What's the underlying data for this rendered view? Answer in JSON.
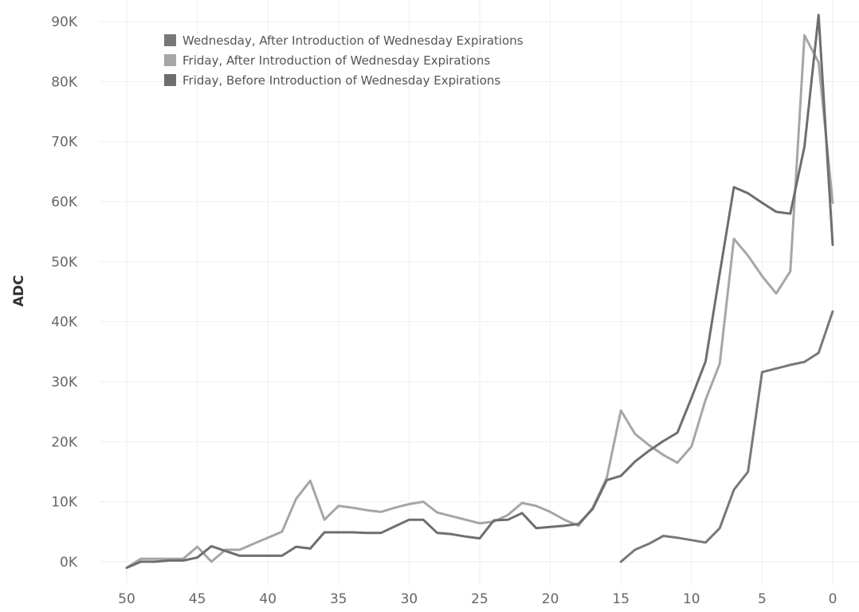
{
  "chart_data": {
    "type": "line",
    "title": "",
    "xlabel": "",
    "ylabel": "ADC",
    "xlim": [
      50,
      0
    ],
    "ylim": [
      -2000,
      92000
    ],
    "x_reversed": true,
    "x_ticks": [
      50,
      45,
      40,
      35,
      30,
      25,
      20,
      15,
      10,
      5,
      0
    ],
    "x_tick_labels": [
      "50",
      "45",
      "40",
      "35",
      "30",
      "25",
      "20",
      "15",
      "10",
      "5",
      "0"
    ],
    "y_ticks": [
      0,
      10000,
      20000,
      30000,
      40000,
      50000,
      60000,
      70000,
      80000,
      90000
    ],
    "y_tick_labels": [
      "0K",
      "10K",
      "20K",
      "30K",
      "40K",
      "50K",
      "60K",
      "70K",
      "80K",
      "90K"
    ],
    "grid": true,
    "legend_position": "top-left",
    "series": [
      {
        "name": "Wednesday, After Introduction of Wednesday Expirations",
        "color": "#787878",
        "x": [
          15,
          14,
          13,
          12,
          11,
          10,
          9,
          8,
          7,
          6,
          5,
          4,
          3,
          2,
          1,
          0
        ],
        "y": [
          0,
          2000,
          3000,
          4300,
          4000,
          3600,
          3200,
          5600,
          12000,
          15000,
          31600,
          32200,
          32800,
          33300,
          34800,
          41700
        ]
      },
      {
        "name": "Friday, After Introduction of Wednesday Expirations",
        "color": "#a6a6a6",
        "x": [
          50,
          49,
          48,
          47,
          46,
          45,
          44,
          43,
          42,
          41,
          40,
          39,
          38,
          37,
          36,
          35,
          34,
          33,
          32,
          31,
          30,
          29,
          28,
          27,
          26,
          25,
          24,
          23,
          22,
          21,
          20,
          19,
          18,
          17,
          16,
          15,
          14,
          13,
          12,
          11,
          10,
          9,
          8,
          7,
          6,
          5,
          4,
          3,
          2,
          1,
          0
        ],
        "y": [
          -1000,
          500,
          500,
          500,
          500,
          2500,
          0,
          2000,
          2000,
          3000,
          4000,
          5000,
          10500,
          13500,
          7000,
          9300,
          9000,
          8600,
          8300,
          9000,
          9600,
          10000,
          8200,
          7600,
          7000,
          6400,
          6700,
          7800,
          9800,
          9300,
          8300,
          7000,
          6000,
          9000,
          14000,
          25200,
          21300,
          19400,
          17800,
          16500,
          19200,
          27000,
          33000,
          53800,
          51000,
          47600,
          44700,
          48400,
          87700,
          83200,
          59800
        ]
      },
      {
        "name": "Friday, Before Introduction of Wednesday Expirations",
        "color": "#6e6e6e",
        "x": [
          50,
          49,
          48,
          47,
          46,
          45,
          44,
          43,
          42,
          41,
          40,
          39,
          38,
          37,
          36,
          35,
          34,
          33,
          32,
          31,
          30,
          29,
          28,
          27,
          26,
          25,
          24,
          23,
          22,
          21,
          20,
          19,
          18,
          17,
          16,
          15,
          14,
          13,
          12,
          11,
          10,
          9,
          8,
          7,
          6,
          5,
          4,
          3,
          2,
          1,
          0
        ],
        "y": [
          -1000,
          0,
          0,
          200,
          200,
          700,
          2600,
          1800,
          1000,
          1000,
          1000,
          1000,
          2500,
          2200,
          4900,
          4900,
          4900,
          4800,
          4800,
          5900,
          7000,
          7000,
          4800,
          4600,
          4200,
          3900,
          6900,
          7000,
          8100,
          5600,
          5800,
          6000,
          6300,
          8800,
          13600,
          14300,
          16700,
          18500,
          20100,
          21500,
          27300,
          33400,
          48000,
          62400,
          61400,
          59800,
          58300,
          58000,
          69200,
          91100,
          52800
        ]
      }
    ]
  }
}
